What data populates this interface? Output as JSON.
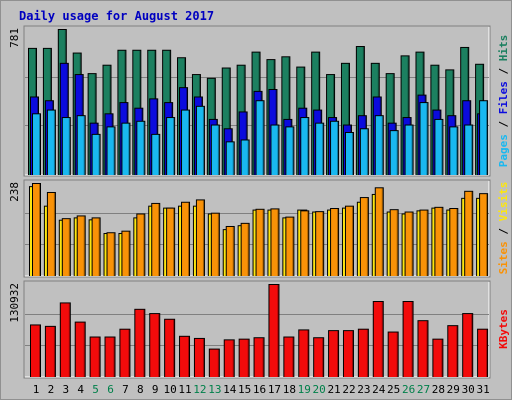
{
  "chart_data": {
    "type": "bar",
    "title": "Daily usage for August 2017",
    "days": [
      "1",
      "2",
      "3",
      "4",
      "5",
      "6",
      "7",
      "8",
      "9",
      "10",
      "11",
      "12",
      "13",
      "14",
      "15",
      "16",
      "17",
      "18",
      "19",
      "20",
      "21",
      "22",
      "23",
      "24",
      "25",
      "26",
      "27",
      "28",
      "29",
      "30",
      "31"
    ],
    "weekend_days": [
      "5",
      "6",
      "12",
      "13",
      "19",
      "20",
      "26",
      "27"
    ],
    "hits": [
      680,
      680,
      781,
      655,
      545,
      590,
      670,
      670,
      670,
      670,
      630,
      540,
      520,
      575,
      590,
      660,
      620,
      635,
      580,
      660,
      540,
      600,
      690,
      600,
      545,
      640,
      660,
      590,
      565,
      685,
      595
    ],
    "files": [
      420,
      400,
      600,
      540,
      280,
      330,
      390,
      360,
      410,
      390,
      470,
      420,
      300,
      250,
      340,
      450,
      460,
      300,
      360,
      350,
      310,
      270,
      320,
      420,
      280,
      310,
      430,
      350,
      320,
      400,
      330
    ],
    "pages": [
      330,
      350,
      310,
      320,
      220,
      260,
      280,
      290,
      220,
      310,
      350,
      370,
      270,
      180,
      190,
      400,
      270,
      260,
      310,
      280,
      290,
      230,
      250,
      320,
      240,
      270,
      390,
      300,
      260,
      270,
      400
    ],
    "sites": [
      238,
      215,
      148,
      155,
      150,
      112,
      116,
      160,
      187,
      175,
      190,
      196,
      162,
      128,
      136,
      172,
      173,
      152,
      168,
      166,
      174,
      180,
      202,
      227,
      171,
      165,
      170,
      177,
      174,
      218,
      212
    ],
    "visits": [
      230,
      180,
      144,
      150,
      145,
      110,
      110,
      150,
      180,
      175,
      180,
      180,
      160,
      120,
      130,
      170,
      170,
      150,
      170,
      165,
      170,
      175,
      190,
      210,
      165,
      160,
      168,
      175,
      170,
      200,
      200
    ],
    "kbytes": [
      74000,
      72000,
      105000,
      78000,
      57000,
      57000,
      68000,
      96000,
      90000,
      82000,
      58000,
      55000,
      40000,
      53000,
      54000,
      56000,
      130932,
      57000,
      67000,
      56000,
      66000,
      66000,
      68000,
      107000,
      64000,
      107000,
      80000,
      54000,
      73000,
      90000,
      68000
    ],
    "panels": [
      {
        "axis_max_label": "781",
        "legend": [
          "Pages",
          "/",
          "Files",
          "/",
          "Hits"
        ],
        "max": 781
      },
      {
        "axis_max_label": "238",
        "legend": [
          "Sites",
          "/",
          "Visits"
        ],
        "max": 238
      },
      {
        "axis_max_label": "130932",
        "legend": [
          "KBytes"
        ],
        "max": 130932
      }
    ],
    "colors": {
      "hits": "#1c8060",
      "files": "#0b0bde",
      "pages": "#19b8f0",
      "sites": "#f99207",
      "visits": "#fce610",
      "kbytes": "#f20b0b",
      "title": "#0000c0",
      "day_label": "#000000",
      "weekend_label": "#00804a",
      "panel_bg": "#c0c0c0",
      "frame": "#c0c0c0",
      "grid": "#808080"
    },
    "grid": true
  }
}
